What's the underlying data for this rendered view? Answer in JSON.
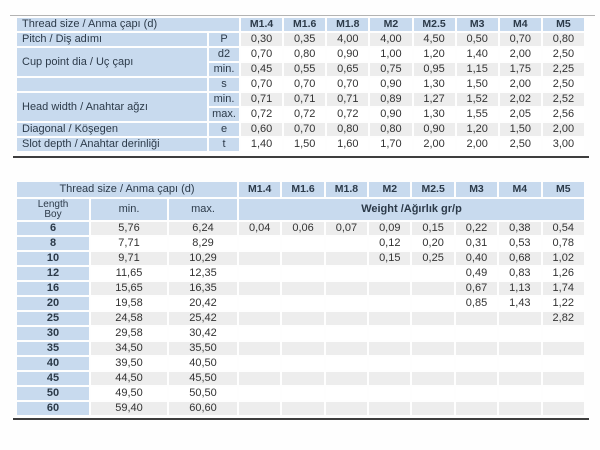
{
  "table1": {
    "header_label": "Thread size / Anma çapı (d)",
    "columns": [
      "M1.4",
      "M1.6",
      "M1.8",
      "M2",
      "M2.5",
      "M3",
      "M4",
      "M5"
    ],
    "rows": [
      {
        "label": "Pitch / Diş adımı",
        "label_rows": 1,
        "sym": "P",
        "values": [
          "0,30",
          "0,35",
          "4,00",
          "4,00",
          "4,50",
          "0,50",
          "0,70",
          "0,80"
        ]
      },
      {
        "label": "Cup point dia / Uç çapı",
        "label_rows": 2,
        "sym": "d2",
        "values": [
          "0,70",
          "0,80",
          "0,90",
          "1,00",
          "1,20",
          "1,40",
          "2,00",
          "2,50"
        ]
      },
      {
        "sym": "min.",
        "values": [
          "0,45",
          "0,55",
          "0,65",
          "0,75",
          "0,95",
          "1,15",
          "1,75",
          "2,25"
        ]
      },
      {
        "label": "",
        "label_rows": 1,
        "sym": "s",
        "values": [
          "0,70",
          "0,70",
          "0,70",
          "0,90",
          "1,30",
          "1,50",
          "2,00",
          "2,50"
        ]
      },
      {
        "label": "Head width / Anahtar ağzı",
        "label_rows": 2,
        "sym": "min.",
        "values": [
          "0,71",
          "0,71",
          "0,71",
          "0,89",
          "1,27",
          "1,52",
          "2,02",
          "2,52"
        ]
      },
      {
        "sym": "max.",
        "values": [
          "0,72",
          "0,72",
          "0,72",
          "0,90",
          "1,30",
          "1,55",
          "2,05",
          "2,56"
        ]
      },
      {
        "label": "Diagonal / Köşegen",
        "label_rows": 1,
        "sym": "e",
        "values": [
          "0,60",
          "0,70",
          "0,80",
          "0,80",
          "0,90",
          "1,20",
          "1,50",
          "2,00"
        ]
      },
      {
        "label": "Slot depth / Anahtar derinliği",
        "label_rows": 1,
        "sym": "t",
        "values": [
          "1,40",
          "1,50",
          "1,60",
          "1,70",
          "2,00",
          "2,00",
          "2,50",
          "3,00"
        ]
      }
    ]
  },
  "table2": {
    "header_label": "Thread size / Anma çapı (d)",
    "columns": [
      "M1.4",
      "M1.6",
      "M1.8",
      "M2",
      "M2.5",
      "M3",
      "M4",
      "M5"
    ],
    "length_label_en": "Length",
    "length_label_tr": "Boy",
    "min_label": "min.",
    "max_label": "max.",
    "weight_label": "Weight /Ağırlık gr/p",
    "rows": [
      {
        "length": "6",
        "min": "5,76",
        "max": "6,24",
        "weights": [
          "0,04",
          "0,06",
          "0,07",
          "0,09",
          "0,15",
          "0,22",
          "0,38",
          "0,54"
        ]
      },
      {
        "length": "8",
        "min": "7,71",
        "max": "8,29",
        "weights": [
          "",
          "",
          "",
          "0,12",
          "0,20",
          "0,31",
          "0,53",
          "0,78"
        ]
      },
      {
        "length": "10",
        "min": "9,71",
        "max": "10,29",
        "weights": [
          "",
          "",
          "",
          "0,15",
          "0,25",
          "0,40",
          "0,68",
          "1,02"
        ]
      },
      {
        "length": "12",
        "min": "11,65",
        "max": "12,35",
        "weights": [
          "",
          "",
          "",
          "",
          "",
          "0,49",
          "0,83",
          "1,26"
        ]
      },
      {
        "length": "16",
        "min": "15,65",
        "max": "16,35",
        "weights": [
          "",
          "",
          "",
          "",
          "",
          "0,67",
          "1,13",
          "1,74"
        ]
      },
      {
        "length": "20",
        "min": "19,58",
        "max": "20,42",
        "weights": [
          "",
          "",
          "",
          "",
          "",
          "0,85",
          "1,43",
          "1,22"
        ]
      },
      {
        "length": "25",
        "min": "24,58",
        "max": "25,42",
        "weights": [
          "",
          "",
          "",
          "",
          "",
          "",
          "",
          "2,82"
        ]
      },
      {
        "length": "30",
        "min": "29,58",
        "max": "30,42",
        "weights": [
          "",
          "",
          "",
          "",
          "",
          "",
          "",
          ""
        ]
      },
      {
        "length": "35",
        "min": "34,50",
        "max": "35,50",
        "weights": [
          "",
          "",
          "",
          "",
          "",
          "",
          "",
          ""
        ]
      },
      {
        "length": "40",
        "min": "39,50",
        "max": "40,50",
        "weights": [
          "",
          "",
          "",
          "",
          "",
          "",
          "",
          ""
        ]
      },
      {
        "length": "45",
        "min": "44,50",
        "max": "45,50",
        "weights": [
          "",
          "",
          "",
          "",
          "",
          "",
          "",
          ""
        ]
      },
      {
        "length": "50",
        "min": "49,50",
        "max": "50,50",
        "weights": [
          "",
          "",
          "",
          "",
          "",
          "",
          "",
          ""
        ]
      },
      {
        "length": "60",
        "min": "59,40",
        "max": "60,60",
        "weights": [
          "",
          "",
          "",
          "",
          "",
          "",
          "",
          ""
        ]
      }
    ]
  },
  "colors": {
    "header_blue": "#c8daee",
    "stripe_gray": "#ededed",
    "rule_dark": "#3e3e3e",
    "text_dark": "#2c3a49"
  }
}
